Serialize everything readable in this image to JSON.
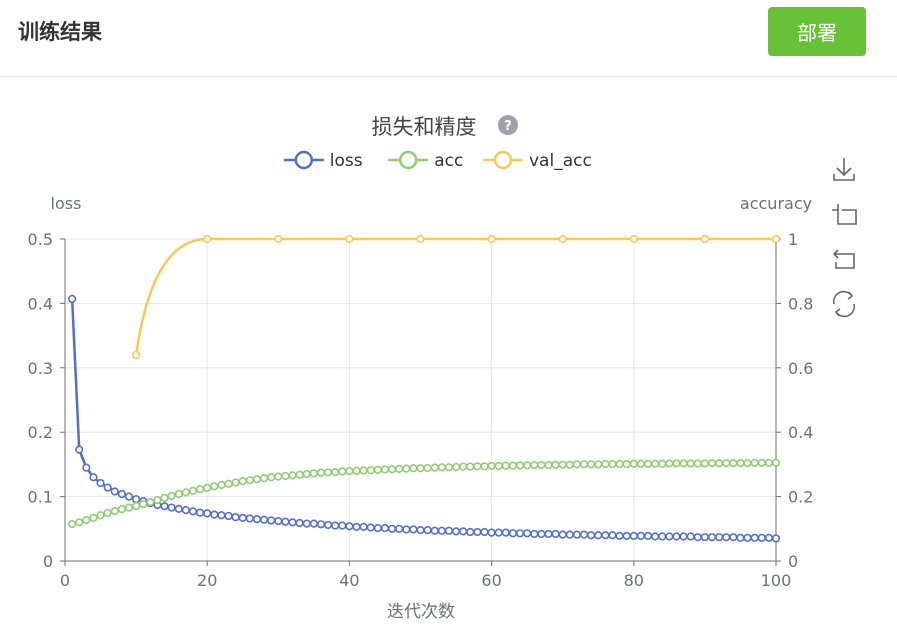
{
  "header": {
    "title": "训练结果",
    "deploy_label": "部署"
  },
  "colors": {
    "deploy_button": "#67c23a",
    "loss": "#5470c6",
    "acc": "#91cc75",
    "val_acc": "#fac858"
  },
  "toolbox": {
    "icons": [
      "download-icon",
      "zoom-icon",
      "zoom-reset-icon",
      "restore-icon"
    ]
  },
  "chart_data": {
    "type": "line",
    "title": "损失和精度",
    "help_icon": "question-circle-icon",
    "xlabel": "迭代次数",
    "ylabel_left": "loss",
    "ylabel_right": "accuracy",
    "xlim": [
      0,
      100
    ],
    "ylim_left": [
      0,
      0.5
    ],
    "ylim_right": [
      0,
      1
    ],
    "xticks": [
      0,
      20,
      40,
      60,
      80,
      100
    ],
    "yticks_left": [
      0,
      0.1,
      0.2,
      0.3,
      0.4,
      0.5
    ],
    "yticks_right": [
      0,
      0.2,
      0.4,
      0.6,
      0.8,
      1
    ],
    "legend": [
      "loss",
      "acc",
      "val_acc"
    ],
    "legend_position": "top-center",
    "grid": true,
    "series": [
      {
        "name": "loss",
        "axis": "left",
        "x": [
          1,
          2,
          3,
          4,
          5,
          6,
          7,
          8,
          9,
          10,
          11,
          12,
          13,
          14,
          15,
          16,
          17,
          18,
          19,
          20,
          21,
          22,
          23,
          24,
          25,
          26,
          27,
          28,
          29,
          30,
          31,
          32,
          33,
          34,
          35,
          36,
          37,
          38,
          39,
          40,
          41,
          42,
          43,
          44,
          45,
          46,
          47,
          48,
          49,
          50,
          51,
          52,
          53,
          54,
          55,
          56,
          57,
          58,
          59,
          60,
          61,
          62,
          63,
          64,
          65,
          66,
          67,
          68,
          69,
          70,
          71,
          72,
          73,
          74,
          75,
          76,
          77,
          78,
          79,
          80,
          81,
          82,
          83,
          84,
          85,
          86,
          87,
          88,
          89,
          90,
          91,
          92,
          93,
          94,
          95,
          96,
          97,
          98,
          99,
          100
        ],
        "values": [
          0.407,
          0.173,
          0.145,
          0.13,
          0.121,
          0.114,
          0.108,
          0.104,
          0.1,
          0.096,
          0.093,
          0.09,
          0.087,
          0.085,
          0.083,
          0.081,
          0.079,
          0.077,
          0.075,
          0.074,
          0.072,
          0.071,
          0.07,
          0.068,
          0.067,
          0.066,
          0.065,
          0.064,
          0.063,
          0.062,
          0.061,
          0.06,
          0.059,
          0.058,
          0.058,
          0.057,
          0.056,
          0.055,
          0.055,
          0.054,
          0.053,
          0.053,
          0.052,
          0.051,
          0.051,
          0.05,
          0.05,
          0.049,
          0.049,
          0.048,
          0.048,
          0.047,
          0.047,
          0.047,
          0.046,
          0.046,
          0.045,
          0.045,
          0.045,
          0.044,
          0.044,
          0.044,
          0.043,
          0.043,
          0.043,
          0.042,
          0.042,
          0.042,
          0.042,
          0.041,
          0.041,
          0.041,
          0.041,
          0.04,
          0.04,
          0.04,
          0.04,
          0.039,
          0.039,
          0.039,
          0.039,
          0.039,
          0.038,
          0.038,
          0.038,
          0.038,
          0.038,
          0.038,
          0.037,
          0.037,
          0.037,
          0.037,
          0.037,
          0.037,
          0.036,
          0.036,
          0.036,
          0.036,
          0.036,
          0.035
        ]
      },
      {
        "name": "acc",
        "axis": "right",
        "x": [
          1,
          2,
          3,
          4,
          5,
          6,
          7,
          8,
          9,
          10,
          11,
          12,
          13,
          14,
          15,
          16,
          17,
          18,
          19,
          20,
          21,
          22,
          23,
          24,
          25,
          26,
          27,
          28,
          29,
          30,
          31,
          32,
          33,
          34,
          35,
          36,
          37,
          38,
          39,
          40,
          41,
          42,
          43,
          44,
          45,
          46,
          47,
          48,
          49,
          50,
          51,
          52,
          53,
          54,
          55,
          56,
          57,
          58,
          59,
          60,
          61,
          62,
          63,
          64,
          65,
          66,
          67,
          68,
          69,
          70,
          71,
          72,
          73,
          74,
          75,
          76,
          77,
          78,
          79,
          80,
          81,
          82,
          83,
          84,
          85,
          86,
          87,
          88,
          89,
          90,
          91,
          92,
          93,
          94,
          95,
          96,
          97,
          98,
          99,
          100
        ],
        "values": [
          0.115,
          0.12,
          0.127,
          0.134,
          0.142,
          0.149,
          0.155,
          0.161,
          0.166,
          0.171,
          0.177,
          0.183,
          0.189,
          0.196,
          0.202,
          0.208,
          0.213,
          0.218,
          0.223,
          0.227,
          0.232,
          0.236,
          0.24,
          0.244,
          0.248,
          0.251,
          0.254,
          0.257,
          0.26,
          0.262,
          0.264,
          0.266,
          0.268,
          0.27,
          0.272,
          0.274,
          0.275,
          0.276,
          0.278,
          0.279,
          0.28,
          0.281,
          0.282,
          0.283,
          0.284,
          0.285,
          0.286,
          0.287,
          0.288,
          0.288,
          0.289,
          0.29,
          0.291,
          0.291,
          0.292,
          0.293,
          0.293,
          0.294,
          0.294,
          0.295,
          0.295,
          0.296,
          0.296,
          0.297,
          0.297,
          0.298,
          0.298,
          0.298,
          0.299,
          0.299,
          0.299,
          0.3,
          0.3,
          0.3,
          0.3,
          0.301,
          0.301,
          0.301,
          0.301,
          0.302,
          0.302,
          0.302,
          0.302,
          0.302,
          0.303,
          0.303,
          0.303,
          0.303,
          0.303,
          0.303,
          0.304,
          0.304,
          0.304,
          0.304,
          0.304,
          0.304,
          0.305,
          0.305,
          0.305,
          0.305
        ]
      },
      {
        "name": "val_acc",
        "axis": "right",
        "x": [
          10,
          20,
          30,
          40,
          50,
          60,
          70,
          80,
          90,
          100
        ],
        "values": [
          0.64,
          1,
          1,
          1,
          1,
          1,
          1,
          1,
          1,
          1
        ]
      }
    ]
  }
}
